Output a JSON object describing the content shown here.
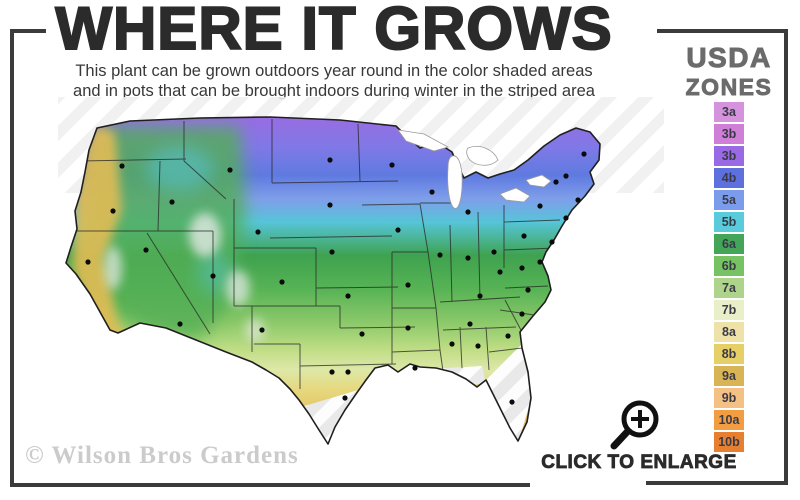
{
  "header": {
    "title": "WHERE IT GROWS",
    "subtitle_line1": "This plant can be grown outdoors year round in the color shaded areas",
    "subtitle_line2": "and in pots that can be brought indoors during winter in the striped area"
  },
  "legend": {
    "title_line1": "USDA",
    "title_line2": "ZONES",
    "zones": [
      {
        "label": "3a",
        "color": "#d493dc"
      },
      {
        "label": "3b",
        "color": "#d07fd8"
      },
      {
        "label": "3b",
        "color": "#9a6ae4"
      },
      {
        "label": "4b",
        "color": "#5d70dd"
      },
      {
        "label": "5a",
        "color": "#7b9ceb"
      },
      {
        "label": "5b",
        "color": "#59cbdb"
      },
      {
        "label": "6a",
        "color": "#43a557"
      },
      {
        "label": "6b",
        "color": "#77c262"
      },
      {
        "label": "7a",
        "color": "#aed48c"
      },
      {
        "label": "7b",
        "color": "#e9efc8"
      },
      {
        "label": "8a",
        "color": "#eee2a9"
      },
      {
        "label": "8b",
        "color": "#e7cf67"
      },
      {
        "label": "9a",
        "color": "#d9b455"
      },
      {
        "label": "9b",
        "color": "#f4c083"
      },
      {
        "label": "10a",
        "color": "#f29d42"
      },
      {
        "label": "10b",
        "color": "#e67f2f"
      }
    ]
  },
  "map": {
    "watermark": "© Wilson Bros Gardens"
  },
  "footer": {
    "enlarge_label": "CLICK TO ENLARGE"
  }
}
